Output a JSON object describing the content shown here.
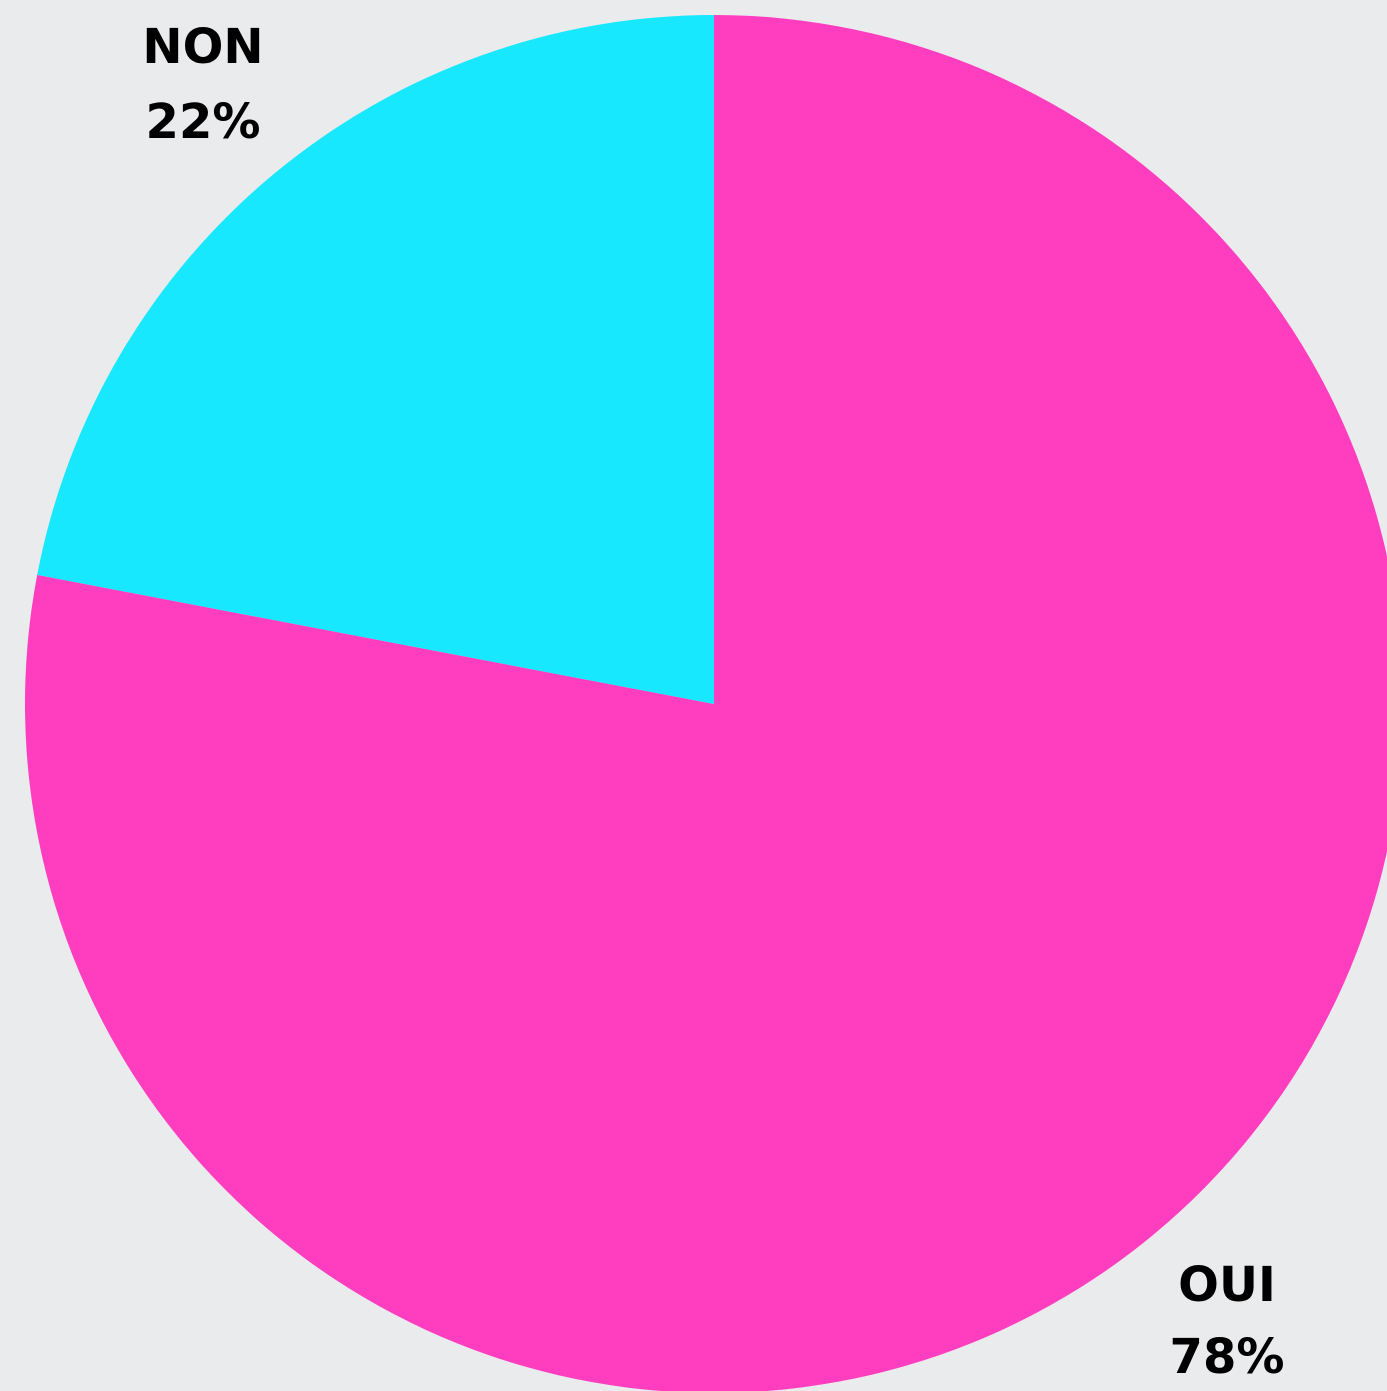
{
  "chart_data": {
    "type": "pie",
    "categories": [
      "OUI",
      "NON"
    ],
    "values": [
      78,
      22
    ],
    "value_labels": [
      "78%",
      "22%"
    ],
    "colors": [
      "#ff3dbf",
      "#17e8fd"
    ]
  }
}
